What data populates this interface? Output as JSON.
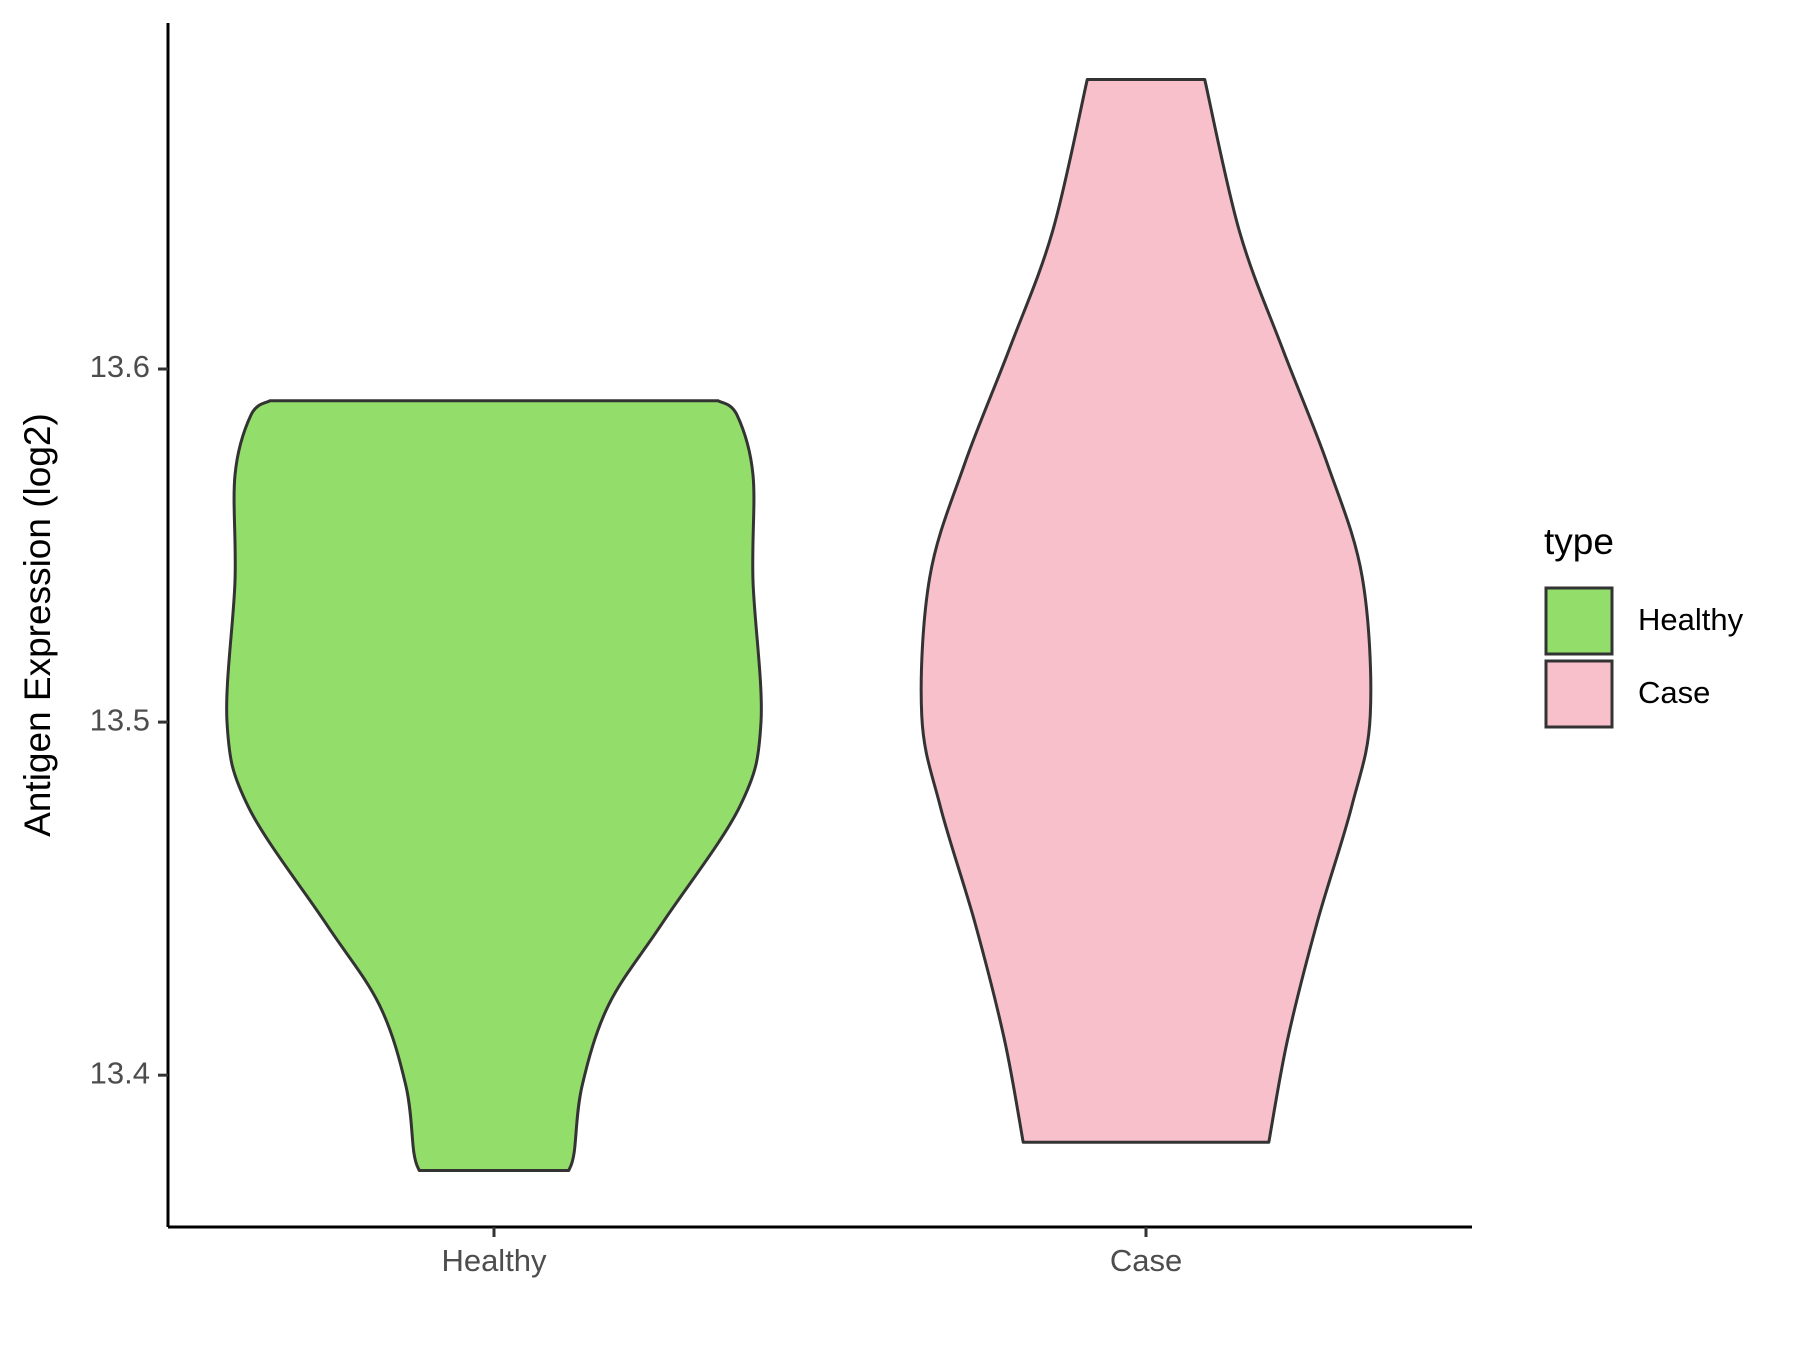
{
  "chart_data": {
    "type": "violin",
    "y_label": "Antigen Expression (log2)",
    "categories": [
      "Healthy",
      "Case"
    ],
    "legend_title": "type",
    "ylim": [
      13.357,
      13.698
    ],
    "yticks": [
      13.4,
      13.5,
      13.6
    ],
    "series": [
      {
        "name": "Healthy",
        "color": "#93dd6b",
        "y": [
          13.591,
          13.587,
          13.57,
          13.54,
          13.5,
          13.476,
          13.443,
          13.42,
          13.397,
          13.378,
          13.373
        ],
        "density": [
          0.84,
          0.91,
          0.97,
          0.97,
          1.0,
          0.92,
          0.63,
          0.43,
          0.33,
          0.3,
          0.28
        ]
      },
      {
        "name": "Case",
        "color": "#f7c0cb",
        "y": [
          13.682,
          13.639,
          13.606,
          13.573,
          13.541,
          13.502,
          13.476,
          13.443,
          13.41,
          13.381
        ],
        "density": [
          0.22,
          0.35,
          0.51,
          0.68,
          0.81,
          0.84,
          0.77,
          0.64,
          0.53,
          0.46
        ]
      }
    ]
  }
}
